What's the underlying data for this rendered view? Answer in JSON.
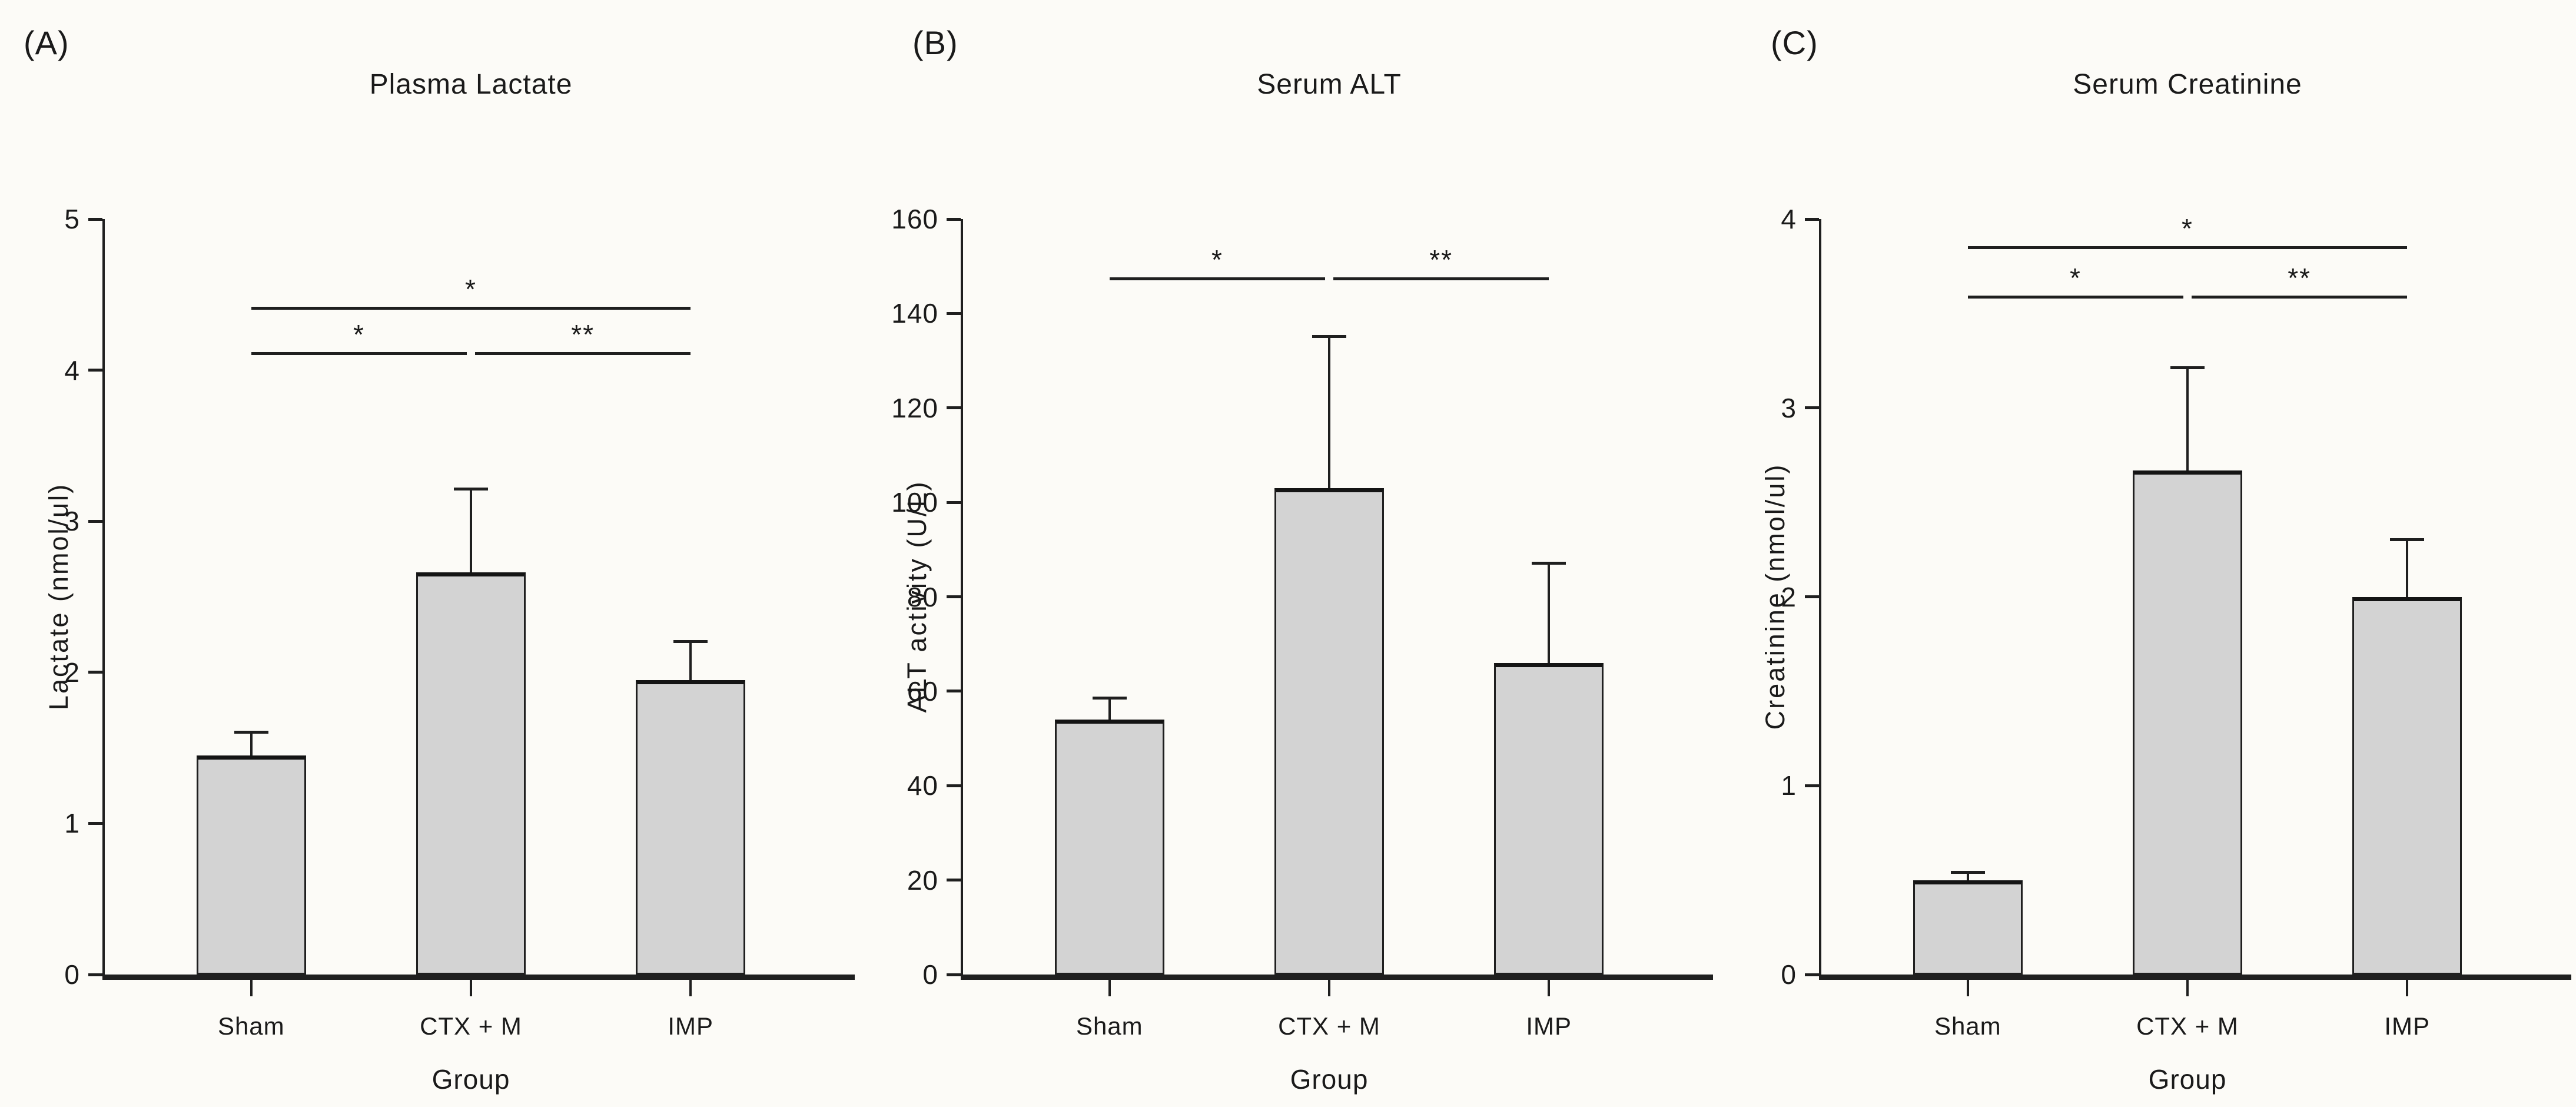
{
  "figure": {
    "kind": "three-panel scientific bar figure",
    "background": "#fcfbf7"
  },
  "colors": {
    "background": "#fcfbf7",
    "bar_fill": "#d3d3d3",
    "bar_border": "#1f1f1f",
    "axis_line": "#1f1f1f",
    "text": "#1a1a1a"
  },
  "chart_data": [
    {
      "type": "bar",
      "panel_label": "(A)",
      "title": "Plasma Lactate",
      "xlabel": "Group",
      "ylabel": "Lactate (nmol/ul)",
      "categories": [
        "Sham",
        "CTX + M",
        "IMP"
      ],
      "values": [
        1.45,
        2.66,
        1.95
      ],
      "error_top": [
        1.6,
        3.21,
        2.2
      ],
      "ylim": [
        0,
        5
      ],
      "yticks": [
        0,
        1,
        2,
        3,
        4,
        5
      ],
      "grid": false,
      "legend": null,
      "significance": [
        {
          "between": [
            "Sham",
            "IMP"
          ],
          "pair": [
            0,
            2
          ],
          "y": 4.4,
          "label": "*"
        },
        {
          "between": [
            "Sham",
            "CTX + M"
          ],
          "pair": [
            0,
            1
          ],
          "y": 4.1,
          "label": "*"
        },
        {
          "between": [
            "CTX + M",
            "IMP"
          ],
          "pair": [
            1,
            2
          ],
          "y": 4.1,
          "label": "**"
        }
      ]
    },
    {
      "type": "bar",
      "panel_label": "(B)",
      "title": "Serum ALT",
      "xlabel": "Group",
      "ylabel": "ALT activity (U/L)",
      "categories": [
        "Sham",
        "CTX + M",
        "IMP"
      ],
      "values": [
        54,
        103,
        66
      ],
      "error_top": [
        58.5,
        135,
        87
      ],
      "ylim": [
        0,
        160
      ],
      "yticks": [
        0,
        20,
        40,
        60,
        80,
        100,
        120,
        140,
        160
      ],
      "grid": false,
      "legend": null,
      "significance": [
        {
          "between": [
            "Sham",
            "CTX + M"
          ],
          "pair": [
            0,
            1
          ],
          "y": 147,
          "label": "*"
        },
        {
          "between": [
            "CTX + M",
            "IMP"
          ],
          "pair": [
            1,
            2
          ],
          "y": 147,
          "label": "**"
        }
      ]
    },
    {
      "type": "bar",
      "panel_label": "(C)",
      "title": "Serum Creatinine",
      "xlabel": "Group",
      "ylabel": "Creatinine (nmol/ul)",
      "categories": [
        "Sham",
        "CTX + M",
        "IMP"
      ],
      "values": [
        0.5,
        2.67,
        2.0
      ],
      "error_top": [
        0.54,
        3.21,
        2.3
      ],
      "ylim": [
        0,
        4
      ],
      "yticks": [
        0,
        1,
        2,
        3,
        4
      ],
      "grid": false,
      "legend": null,
      "significance": [
        {
          "between": [
            "Sham",
            "IMP"
          ],
          "pair": [
            0,
            2
          ],
          "y": 3.84,
          "label": "*"
        },
        {
          "between": [
            "Sham",
            "CTX + M"
          ],
          "pair": [
            0,
            1
          ],
          "y": 3.58,
          "label": "*"
        },
        {
          "between": [
            "CTX + M",
            "IMP"
          ],
          "pair": [
            1,
            2
          ],
          "y": 3.58,
          "label": "**"
        }
      ]
    }
  ]
}
